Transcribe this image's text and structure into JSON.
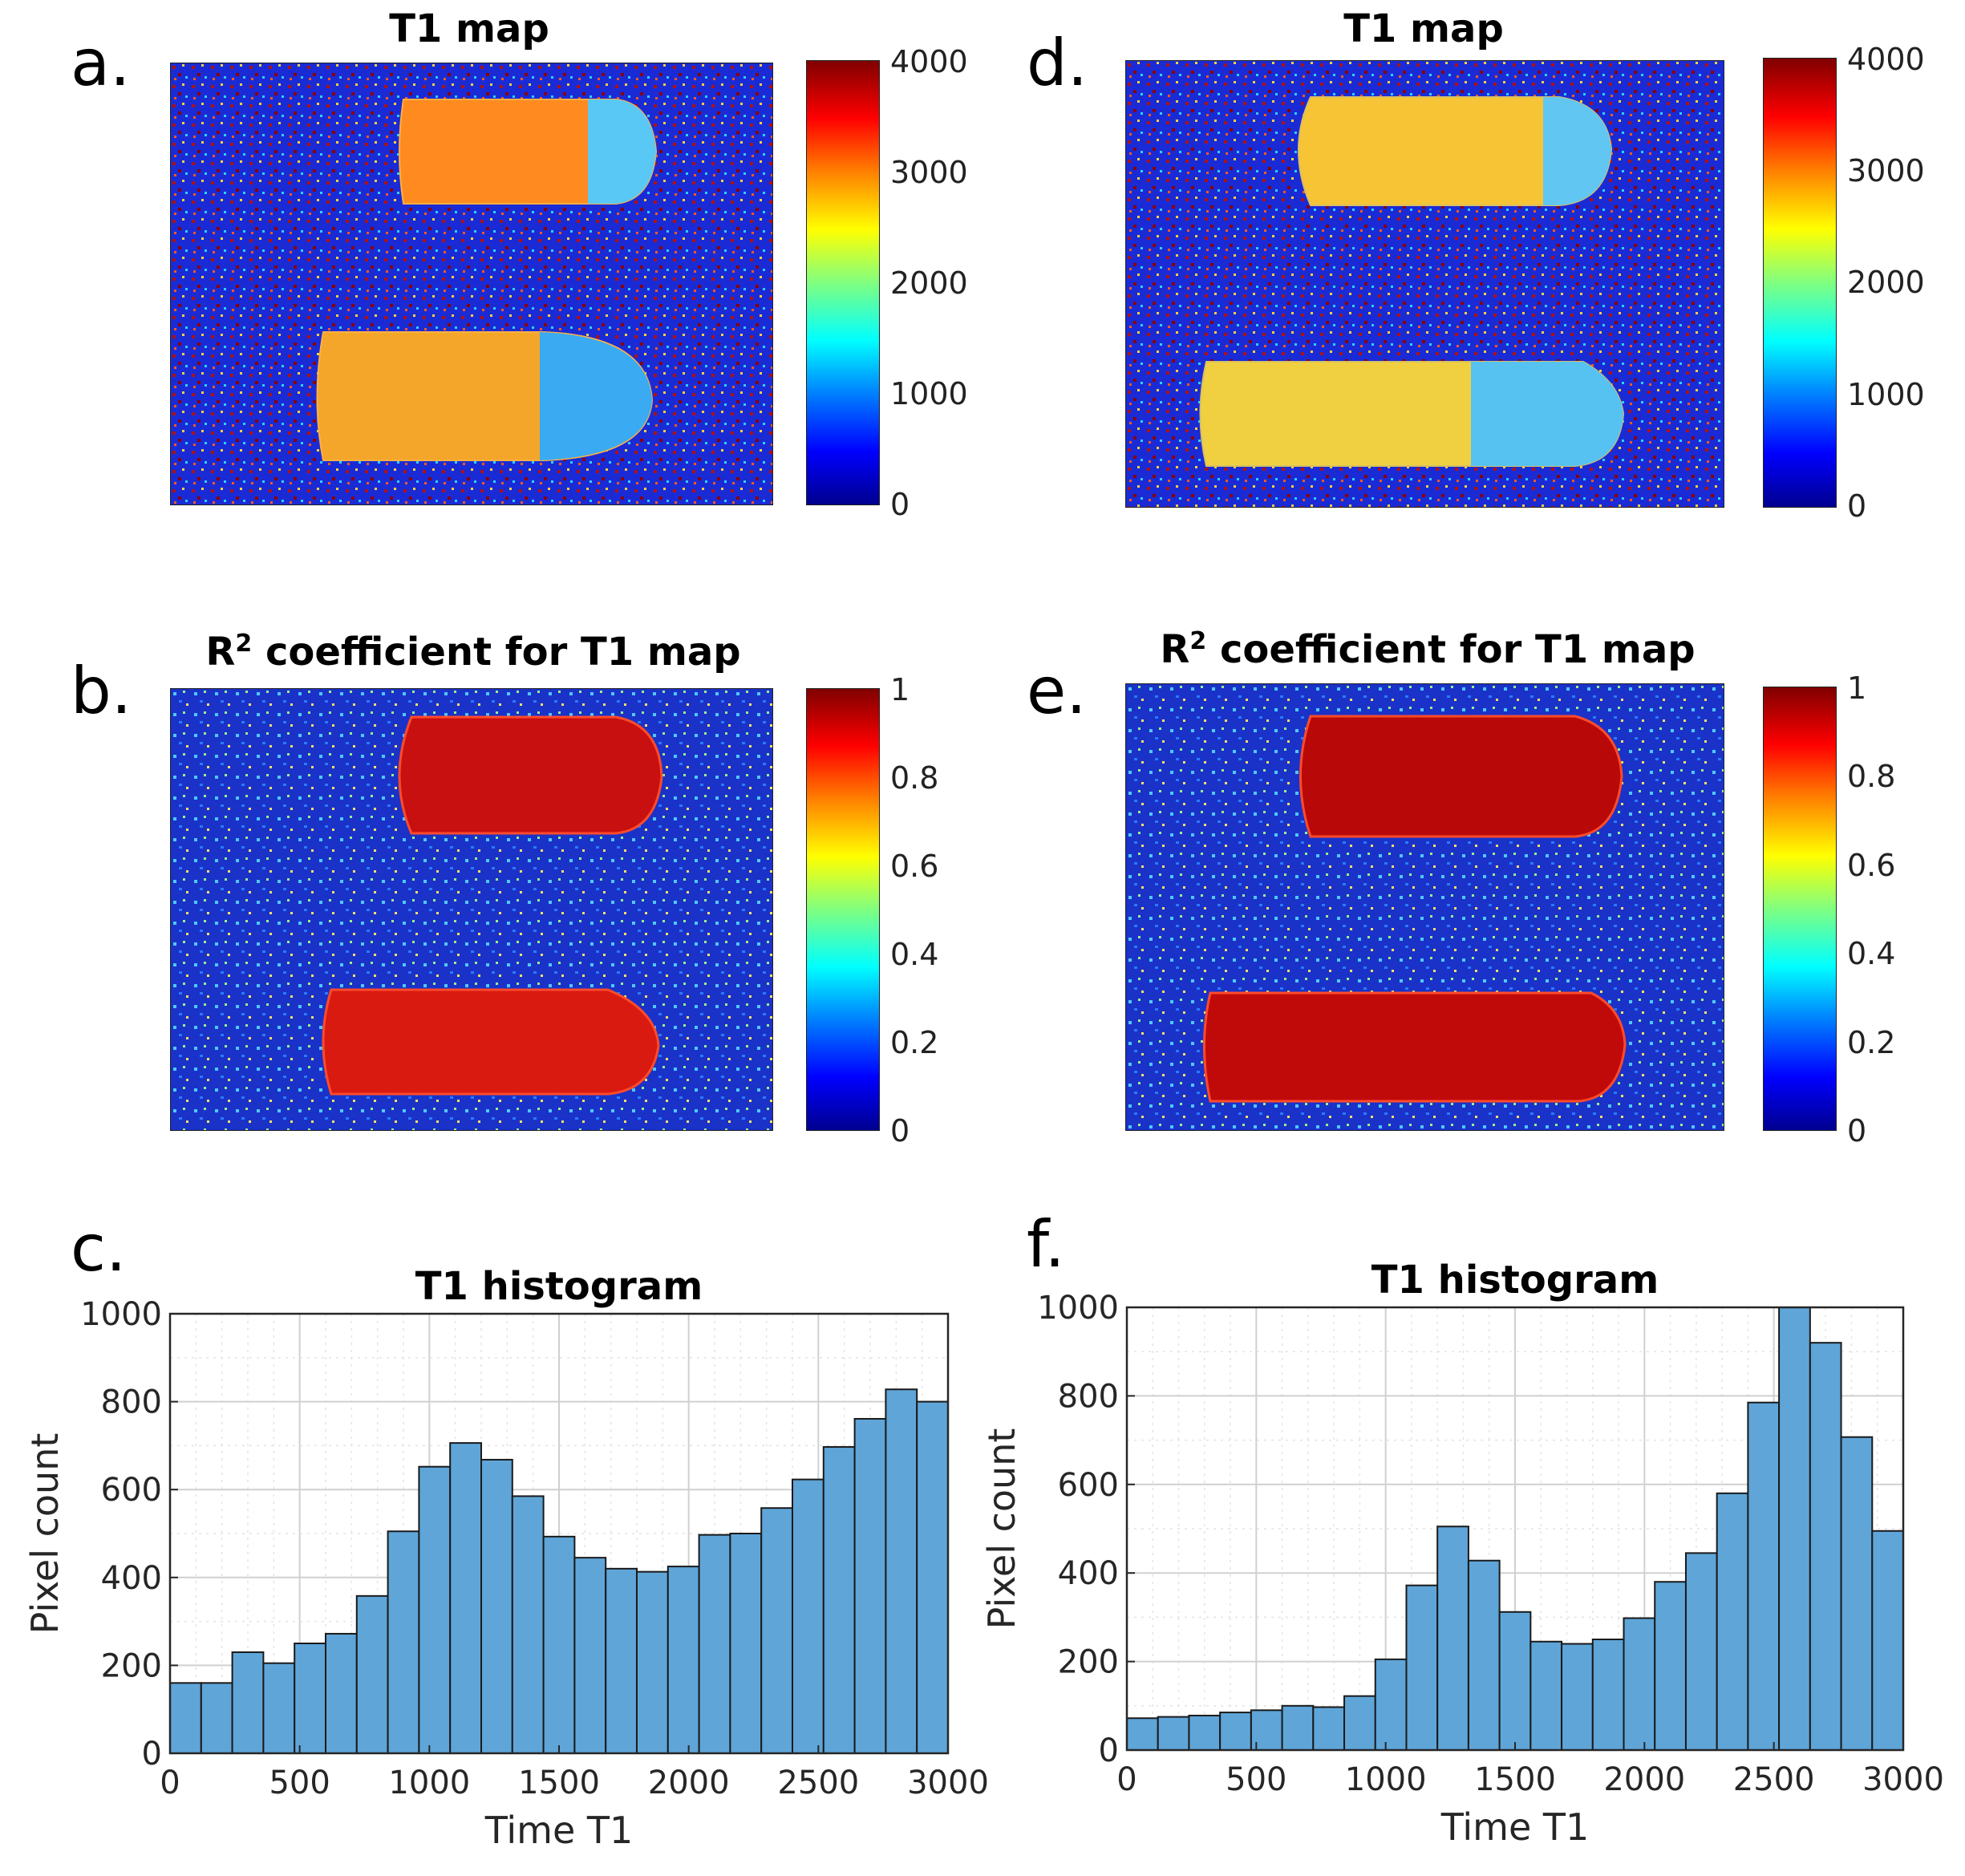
{
  "panels": {
    "a": {
      "letter": "a.",
      "title": "T1 map",
      "cbar_ticks": [
        "4000",
        "3000",
        "2000",
        "1000",
        "0"
      ]
    },
    "b": {
      "letter": "b.",
      "title_main": "R",
      "title_sup": "2",
      "title_rest": " coefficient for T1 map",
      "cbar_ticks": [
        "1",
        "0.8",
        "0.6",
        "0.4",
        "0.2",
        "0"
      ]
    },
    "c": {
      "letter": "c."
    },
    "d": {
      "letter": "d.",
      "title": "T1 map",
      "cbar_ticks": [
        "4000",
        "3000",
        "2000",
        "1000",
        "0"
      ]
    },
    "e": {
      "letter": "e.",
      "title_main": "R",
      "title_sup": "2",
      "title_rest": " coefficient for T1 map",
      "cbar_ticks": [
        "1",
        "0.8",
        "0.6",
        "0.4",
        "0.2",
        "0"
      ]
    },
    "f": {
      "letter": "f."
    }
  },
  "colors": {
    "bar_fill": "#5fa5d8",
    "bar_edge": "#1a1a1a",
    "map_bg": "#1a2bd6"
  },
  "chart_data": [
    {
      "id": "c",
      "type": "bar",
      "title": "T1 histogram",
      "xlabel": "Time T1",
      "ylabel": "Pixel count",
      "xlim": [
        0,
        3000
      ],
      "ylim": [
        0,
        1000
      ],
      "xticks": [
        "0",
        "500",
        "1000",
        "1500",
        "2000",
        "2500",
        "3000"
      ],
      "yticks": [
        "0",
        "200",
        "400",
        "600",
        "800",
        "1000"
      ],
      "bin_width": 120,
      "bin_starts": [
        0,
        120,
        240,
        360,
        480,
        600,
        720,
        840,
        960,
        1080,
        1200,
        1320,
        1440,
        1560,
        1680,
        1800,
        1920,
        2040,
        2160,
        2280,
        2400,
        2520,
        2640,
        2760,
        2880
      ],
      "values": [
        160,
        160,
        230,
        205,
        250,
        272,
        358,
        505,
        652,
        706,
        668,
        585,
        493,
        445,
        420,
        413,
        425,
        497,
        500,
        558,
        623,
        697,
        761,
        828,
        800
      ],
      "grid": true
    },
    {
      "id": "f",
      "type": "bar",
      "title": "T1 histogram",
      "xlabel": "Time T1",
      "ylabel": "Pixel count",
      "xlim": [
        0,
        3000
      ],
      "ylim": [
        0,
        1000
      ],
      "xticks": [
        "0",
        "500",
        "1000",
        "1500",
        "2000",
        "2500",
        "3000"
      ],
      "yticks": [
        "0",
        "200",
        "400",
        "600",
        "800",
        "1000"
      ],
      "bin_width": 120,
      "bin_starts": [
        0,
        120,
        240,
        360,
        480,
        600,
        720,
        840,
        960,
        1080,
        1200,
        1320,
        1440,
        1560,
        1680,
        1800,
        1920,
        2040,
        2160,
        2280,
        2400,
        2520,
        2640,
        2760,
        2880
      ],
      "values": [
        72,
        75,
        78,
        85,
        90,
        100,
        97,
        122,
        205,
        372,
        505,
        428,
        312,
        245,
        240,
        250,
        298,
        380,
        445,
        580,
        785,
        1000,
        920,
        707,
        495
      ],
      "grid": true
    }
  ]
}
